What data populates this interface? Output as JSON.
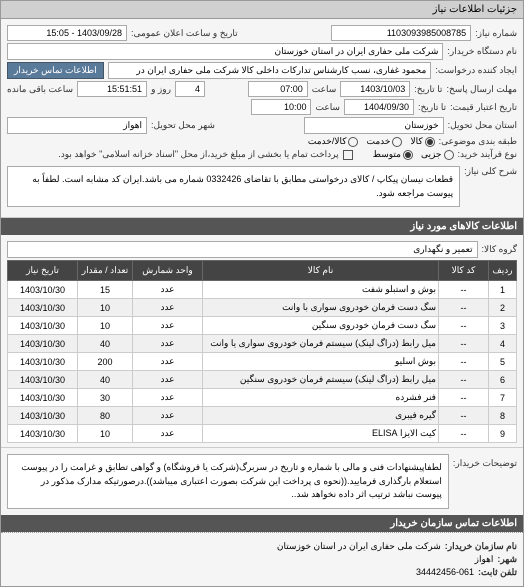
{
  "header": {
    "title": "جزئیات اطلاعات نیاز"
  },
  "meta": {
    "req_no_label": "شماره نیاز:",
    "req_no": "1103093985008785",
    "public_dt_label": "تاریخ و ساعت اعلان عمومی:",
    "public_dt": "1403/09/28 - 15:05",
    "buyer_label": "نام دستگاه خریدار:",
    "buyer": "شرکت ملی حفاری ایران در استان خوزستان",
    "creator_label": "ایجاد کننده درخواست:",
    "creator": "محمود غفاری، نسب کارشناس تدارکات داخلی  کالا شرکت ملی حفاری ایران در",
    "contact_btn": "اطلاعات تماس خریدار",
    "deadline_send_label": "مهلت ارسال پاسخ:",
    "deadline_send_to": "تا تاریخ:",
    "deadline_date": "1403/10/03",
    "time_label": "ساعت",
    "deadline_time": "07:00",
    "days_label": "روز و",
    "days": "4",
    "remain_label": "ساعت باقی مانده",
    "remain_time": "15:51:51",
    "validity_label": "تاریخ اعتبار قیمت:",
    "validity_to": "تا تاریخ:",
    "validity_date": "1404/09/30",
    "validity_time": "10:00",
    "province_label": "استان محل تحویل:",
    "province": "خوزستان",
    "city_label": "شهر محل تحویل:",
    "city": "اهواز",
    "category_label": "طبقه بندی موضوعی:",
    "cat_options": {
      "goods": "کالا",
      "service": "خدمت",
      "goods_service": "کالا/خدمت"
    },
    "cat_selected": "goods",
    "process_label": "نوع فرآیند خرید:",
    "proc_options": {
      "small": "جزیی",
      "medium": "متوسط"
    },
    "proc_selected": "medium",
    "payment_note": "پرداخت تمام یا بخشی از مبلغ خرید،از محل \"اسناد خزانه اسلامی\" خواهد بود.",
    "desc_label": "شرح کلی نیاز:",
    "desc_text": "قطعات نیسان پیکاپ /  کالای درخواستی مطابق با تقاضای 0332426 شماره می باشد.ایران کد مشابه است. لطفاً به پیوست مراجعه شود."
  },
  "goods": {
    "header": "اطلاعات کالاهای مورد نیاز",
    "group_label": "گروه کالا:",
    "group": "تعمیر و نگهداری",
    "columns": [
      "ردیف",
      "کد کالا",
      "نام کالا",
      "واحد شمارش",
      "تعداد / مقدار",
      "تاریخ نیاز"
    ],
    "rows": [
      [
        "1",
        "--",
        "بوش و استبلو شفت",
        "عدد",
        "15",
        "1403/10/30"
      ],
      [
        "2",
        "--",
        "سگ دست فرمان خودروی سواری با وانت",
        "عدد",
        "10",
        "1403/10/30"
      ],
      [
        "3",
        "--",
        "سگ دست فرمان خودروی سنگین",
        "عدد",
        "10",
        "1403/10/30"
      ],
      [
        "4",
        "--",
        "میل رابط (دراگ لینک) سیستم فرمان خودروی سواری یا وانت",
        "عدد",
        "40",
        "1403/10/30"
      ],
      [
        "5",
        "--",
        "بوش اسلیو",
        "عدد",
        "200",
        "1403/10/30"
      ],
      [
        "6",
        "--",
        "میل رابط (دراگ لینک) سیستم فرمان خودروی سنگین",
        "عدد",
        "40",
        "1403/10/30"
      ],
      [
        "7",
        "--",
        "فنر فشرده",
        "عدد",
        "30",
        "1403/10/30"
      ],
      [
        "8",
        "--",
        "گیره فیبری",
        "عدد",
        "80",
        "1403/10/30"
      ],
      [
        "9",
        "--",
        "کیت الایزا ELISA",
        "عدد",
        "10",
        "1403/10/30"
      ]
    ]
  },
  "footer": {
    "note_label": "توضیحات خریدار:",
    "note_text": "لطفاپیشنهادات فنی و مالی با شماره و تاریخ در سربرگ(شرکت یا فروشگاه) و گواهی تطابق و غرامت را در پیوست استعلام بارگذاری فرمایید.((نحوه ی پرداخت این شرکت بصورت اعتباری میباشد)).درصورتیکه مدارک مذکور در پیوست نباشد ترتیب اثر داده نخواهد شد..",
    "contact_header": "اطلاعات تماس سازمان خریدار",
    "org_label": "نام سازمان خریدار:",
    "org": "شرکت ملی حفاری ایران در استان خوزستان",
    "city_label": "شهر:",
    "city": "اهواز",
    "tel_label": "تلفن ثابت:",
    "tel": "34442456-061"
  }
}
